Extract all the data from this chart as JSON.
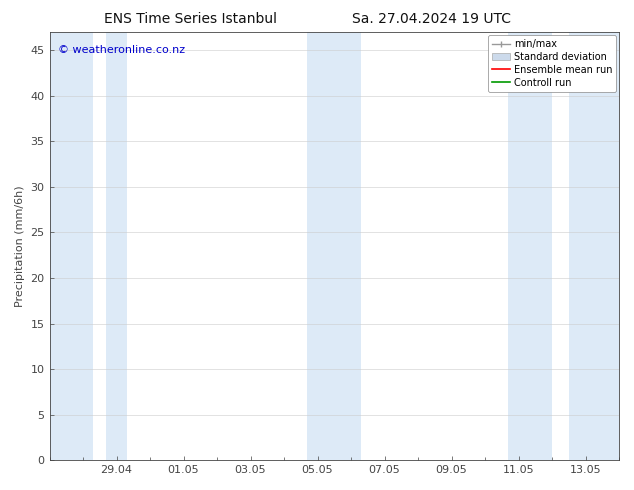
{
  "title_left": "ENS Time Series Istanbul",
  "title_right": "Sa. 27.04.2024 19 UTC",
  "ylabel": "Precipitation (mm/6h)",
  "watermark": "© weatheronline.co.nz",
  "watermark_color": "#0000cc",
  "ylim": [
    0,
    47
  ],
  "yticks": [
    0,
    5,
    10,
    15,
    20,
    25,
    30,
    35,
    40,
    45
  ],
  "xtick_labels": [
    "29.04",
    "01.05",
    "03.05",
    "05.05",
    "07.05",
    "09.05",
    "11.05",
    "13.05"
  ],
  "xtick_positions": [
    2,
    4,
    6,
    8,
    10,
    12,
    14,
    16
  ],
  "bg_color": "#ffffff",
  "plot_bg_color": "#ffffff",
  "band_color": "#ddeaf7",
  "legend_labels": [
    "min/max",
    "Standard deviation",
    "Ensemble mean run",
    "Controll run"
  ],
  "legend_line_colors": [
    "#999999",
    "#bbccdd",
    "#ff0000",
    "#009900"
  ],
  "total_days": 17,
  "xlim": [
    0,
    17
  ],
  "band_regions": [
    [
      0.0,
      1.3
    ],
    [
      1.7,
      2.3
    ],
    [
      7.7,
      9.3
    ],
    [
      13.7,
      15.0
    ],
    [
      15.5,
      17.0
    ]
  ],
  "font_size_title": 10,
  "font_size_axis": 8,
  "font_size_legend": 7,
  "font_size_watermark": 8,
  "tick_color": "#444444",
  "spine_color": "#444444",
  "grid_color": "#cccccc"
}
